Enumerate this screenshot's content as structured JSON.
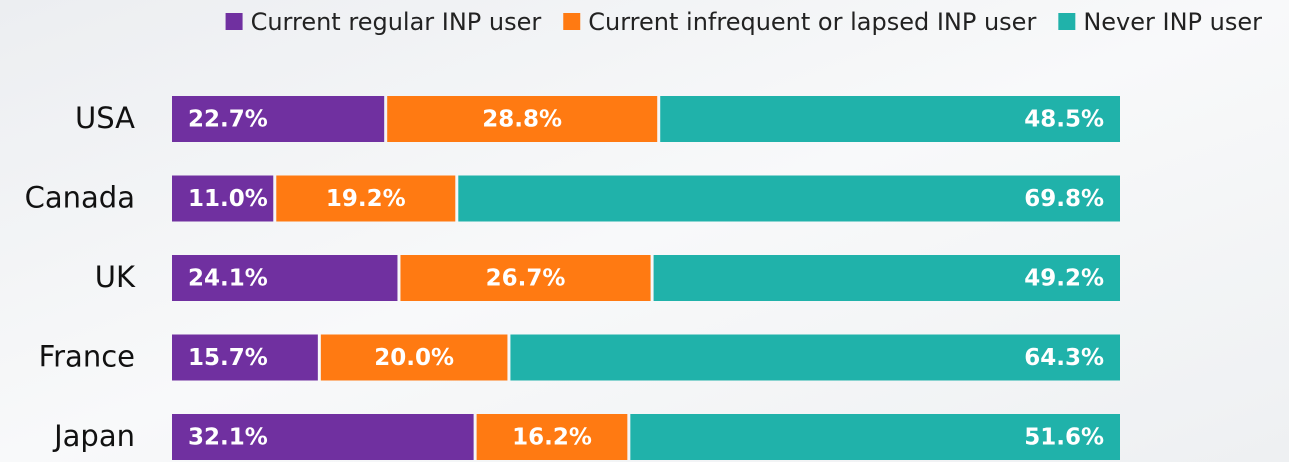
{
  "chart_data": {
    "type": "stacked-bar",
    "orientation": "horizontal",
    "categories": [
      "USA",
      "Canada",
      "UK",
      "France",
      "Japan"
    ],
    "series": [
      {
        "name": "Current regular INP user",
        "color": "#7030a0",
        "values": [
          22.7,
          11.0,
          24.1,
          15.7,
          32.1
        ],
        "value_labels": [
          "22.7%",
          "11.0%",
          "24.1%",
          "15.7%",
          "32.1%"
        ]
      },
      {
        "name": "Current infrequent or lapsed INP user",
        "color": "#ff7a12",
        "values": [
          28.8,
          19.2,
          26.7,
          20.0,
          16.2
        ],
        "value_labels": [
          "28.8%",
          "19.2%",
          "26.7%",
          "20.0%",
          "16.2%"
        ]
      },
      {
        "name": "Never INP user",
        "color": "#20b2aa",
        "values": [
          48.5,
          69.8,
          49.2,
          64.3,
          51.6
        ],
        "value_labels": [
          "48.5%",
          "69.8%",
          "49.2%",
          "64.3%",
          "51.6%"
        ]
      }
    ],
    "legend": "top"
  }
}
